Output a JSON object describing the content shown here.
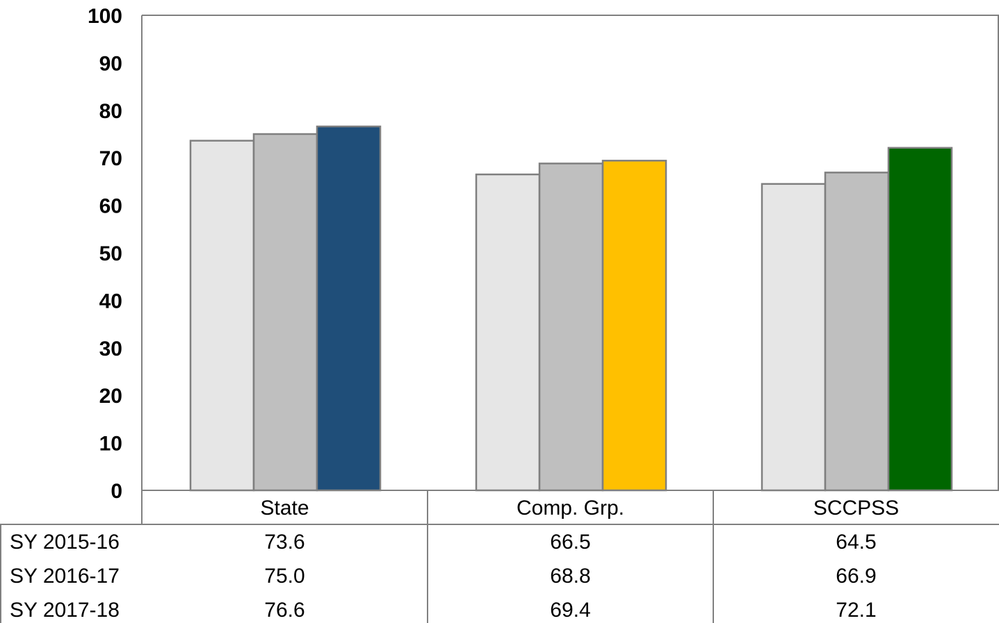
{
  "chart_data": {
    "type": "bar",
    "categories": [
      "State",
      "Comp. Grp.",
      "SCCPSS"
    ],
    "series": [
      {
        "name": "SY 2015-16",
        "values": [
          73.6,
          66.5,
          64.5
        ]
      },
      {
        "name": "SY 2016-17",
        "values": [
          75.0,
          68.8,
          66.9
        ]
      },
      {
        "name": "SY 2017-18",
        "values": [
          76.6,
          69.4,
          72.1
        ]
      }
    ],
    "table_values": [
      [
        "73.6",
        "66.5",
        "64.5"
      ],
      [
        "75.0",
        "68.8",
        "66.9"
      ],
      [
        "76.6",
        "69.4",
        "72.1"
      ]
    ],
    "yticks": [
      "0",
      "10",
      "20",
      "30",
      "40",
      "50",
      "60",
      "70",
      "80",
      "90",
      "100"
    ],
    "ylim": [
      0,
      100
    ],
    "grid": false,
    "legend": "data-table-below",
    "colors": {
      "series_default": [
        "#e6e6e6",
        "#bfbfbf"
      ],
      "latest_by_category": [
        "#1f4e79",
        "#ffc000",
        "#006600"
      ],
      "bar_stroke": "#7f7f7f",
      "axis": "#808080"
    }
  }
}
